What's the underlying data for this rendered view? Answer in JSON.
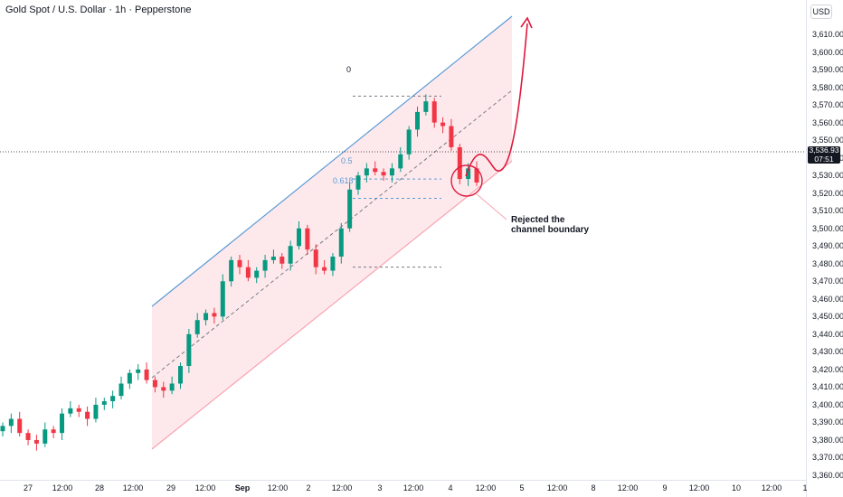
{
  "header": {
    "title": "Gold Spot / U.S. Dollar · 1h · Pepperstone",
    "currency": "USD"
  },
  "price_tag": {
    "price": "3,536.93",
    "countdown": "07:51",
    "color": "#131722"
  },
  "price_axis": {
    "labels": [
      "3,610.00",
      "3,600.00",
      "3,590.00",
      "3,580.00",
      "3,570.00",
      "3,560.00",
      "3,550.00",
      "3,540.00",
      "3,530.00",
      "3,520.00",
      "3,510.00",
      "3,500.00",
      "3,490.00",
      "3,480.00",
      "3,470.00",
      "3,460.00",
      "3,450.00",
      "3,440.00",
      "3,430.00",
      "3,420.00",
      "3,410.00",
      "3,400.00",
      "3,390.00",
      "3,380.00",
      "3,370.00",
      "3,360.00"
    ]
  },
  "time_axis": {
    "labels": [
      {
        "text": "27",
        "bold": false
      },
      {
        "text": "12:00",
        "bold": false
      },
      {
        "text": "28",
        "bold": false
      },
      {
        "text": "12:00",
        "bold": false
      },
      {
        "text": "29",
        "bold": false
      },
      {
        "text": "12:00",
        "bold": false
      },
      {
        "text": "Sep",
        "bold": true
      },
      {
        "text": "12:00",
        "bold": false
      },
      {
        "text": "2",
        "bold": false
      },
      {
        "text": "12:00",
        "bold": false
      },
      {
        "text": "3",
        "bold": false
      },
      {
        "text": "12:00",
        "bold": false
      },
      {
        "text": "4",
        "bold": false
      },
      {
        "text": "12:00",
        "bold": false
      },
      {
        "text": "5",
        "bold": false
      },
      {
        "text": "12:00",
        "bold": false
      },
      {
        "text": "8",
        "bold": false
      },
      {
        "text": "12:00",
        "bold": false
      },
      {
        "text": "9",
        "bold": false
      },
      {
        "text": "12:00",
        "bold": false
      },
      {
        "text": "10",
        "bold": false
      },
      {
        "text": "12:00",
        "bold": false
      },
      {
        "text": "1",
        "bold": false
      }
    ]
  },
  "fib_labels": {
    "level_0": "0",
    "level_05": "0.5",
    "level_0618": "0.618"
  },
  "annotation": {
    "line1": "Rejected the",
    "line2": "channel boundary"
  },
  "colors": {
    "up": "#26a69a",
    "up_body": "#089981",
    "down": "#f23645",
    "channel_fill": "#fde7ea",
    "channel_upper": "#5b9bd5",
    "channel_lower": "#f7a4b1",
    "arrow": "#e0193d"
  },
  "chart_data": {
    "type": "candlestick",
    "symbol": "Gold Spot / U.S. Dollar",
    "interval": "1h",
    "ylim": [
      3355,
      3620
    ],
    "ohlc_close_path": [
      3388,
      3392,
      3384,
      3380,
      3378,
      3386,
      3384,
      3395,
      3398,
      3396,
      3392,
      3400,
      3402,
      3405,
      3412,
      3418,
      3420,
      3414,
      3410,
      3408,
      3412,
      3422,
      3440,
      3448,
      3452,
      3450,
      3470,
      3482,
      3478,
      3472,
      3476,
      3482,
      3484,
      3480,
      3490,
      3500,
      3488,
      3478,
      3476,
      3484,
      3500,
      3522,
      3530,
      3534,
      3532,
      3530,
      3534,
      3542,
      3556,
      3566,
      3572,
      3560,
      3558,
      3546,
      3528,
      3534,
      3526
    ],
    "current_price": 3536.93,
    "fib_levels": {
      "0": 3575,
      "0.5": 3528,
      "0.618": 3517
    },
    "fib_base": 3478
  }
}
